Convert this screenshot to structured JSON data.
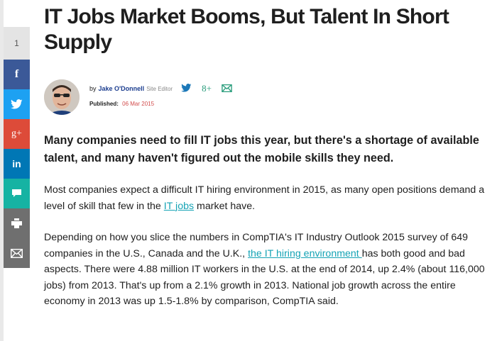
{
  "share": {
    "count": "1",
    "buttons": [
      {
        "name": "facebook",
        "glyph": "f",
        "color": "#3b5998"
      },
      {
        "name": "twitter",
        "glyph": "",
        "color": "#1da1f2"
      },
      {
        "name": "google-plus",
        "glyph": "g+",
        "color": "#dd4b39"
      },
      {
        "name": "linkedin",
        "glyph": "in",
        "color": "#0077b5"
      },
      {
        "name": "comment",
        "glyph": "",
        "color": "#16b3a3"
      },
      {
        "name": "print",
        "glyph": "",
        "color": "#6f6f6f"
      },
      {
        "name": "email",
        "glyph": "",
        "color": "#6f6f6f"
      }
    ]
  },
  "article": {
    "title": "IT Jobs Market Booms, But Talent In Short Supply",
    "author": {
      "by": "by",
      "name": "Jake O'Donnell",
      "role": "Site Editor",
      "social_colors": {
        "twitter": "#1c78b8",
        "google_plus": "#2a9d7c",
        "email": "#2a9d7c"
      },
      "social_glyph_gplus": "8+"
    },
    "published_label": "Published:",
    "published_date": "06 Mar 2015",
    "lead": "Many companies need to fill IT jobs this year, but there's a shortage of available talent, and many haven't figured out the mobile skills they need.",
    "p1": {
      "before": "Most companies expect a difficult IT hiring environment in 2015, as many open positions demand a level of skill that few in the ",
      "link": "IT jobs",
      "after": " market have."
    },
    "p2": {
      "before": "Depending on how you slice the numbers in CompTIA's IT Industry Outlook 2015 survey of 649 companies in the U.S., Canada and the U.K., ",
      "link": "the IT hiring environment ",
      "after": " has both good and bad aspects. There were 4.88 million IT workers in the U.S. at the end of 2014, up 2.4% (about 116,000 jobs) from 2013. That's up from a 2.1% growth in 2013. National job growth across the entire economy in 2013 was up 1.5-1.8% by comparison, CompTIA said."
    }
  }
}
